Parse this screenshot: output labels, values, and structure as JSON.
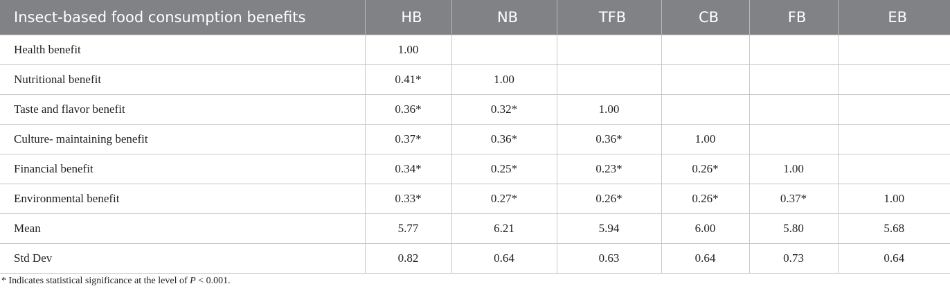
{
  "table": {
    "columns": [
      "Insect-based food consumption benefits",
      "HB",
      "NB",
      "TFB",
      "CB",
      "FB",
      "EB"
    ],
    "rows": [
      [
        "Health benefit",
        "1.00",
        null,
        null,
        null,
        null,
        null
      ],
      [
        "Nutritional benefit",
        "0.41*",
        "1.00",
        null,
        null,
        null,
        null
      ],
      [
        "Taste and flavor benefit",
        "0.36*",
        "0.32*",
        "1.00",
        null,
        null,
        null
      ],
      [
        "Culture- maintaining benefit",
        "0.37*",
        "0.36*",
        "0.36*",
        "1.00",
        null,
        null
      ],
      [
        "Financial benefit",
        "0.34*",
        "0.25*",
        "0.23*",
        "0.26*",
        "1.00",
        null
      ],
      [
        "Environmental benefit",
        "0.33*",
        "0.27*",
        "0.26*",
        "0.26*",
        "0.37*",
        "1.00"
      ],
      [
        "Mean",
        "5.77",
        "6.21",
        "5.94",
        "6.00",
        "5.80",
        "5.68"
      ],
      [
        "Std Dev",
        "0.82",
        "0.64",
        "0.63",
        "0.64",
        "0.73",
        "0.64"
      ]
    ]
  },
  "footnote": [
    "* Indicates statistical significance at the level of ",
    "P",
    " < 0.001."
  ]
}
